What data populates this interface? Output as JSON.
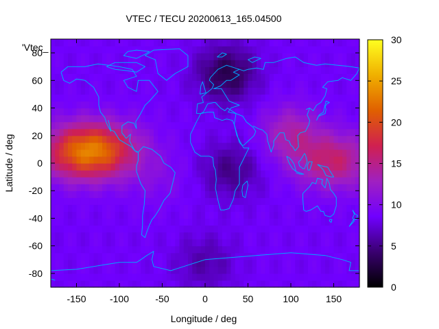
{
  "chart_data": {
    "type": "heatmap",
    "title": "VTEC / TECU 20200613_165.04500",
    "xlabel": "Longitude / deg",
    "ylabel": "Latitude / deg",
    "xlim": [
      -180,
      180
    ],
    "ylim": [
      -90,
      90
    ],
    "xticks": [
      -150,
      -100,
      -50,
      0,
      50,
      100,
      150
    ],
    "yticks": [
      -80,
      -60,
      -40,
      -20,
      0,
      20,
      40,
      60,
      80
    ],
    "colorbar": {
      "min": 0,
      "max": 30,
      "ticks": [
        0,
        5,
        10,
        15,
        20,
        25,
        30
      ],
      "palette": [
        "#000000",
        "#3a0070",
        "#7000ff",
        "#a020c0",
        "#d02050",
        "#e06000",
        "#f0b000",
        "#ffff20"
      ]
    },
    "key_label": "'Vtec_",
    "grid": false,
    "coastline_color": "#00a8ff",
    "field_model": {
      "base_tecu": 8.5,
      "features": [
        {
          "lon": -150,
          "lat": 8,
          "peak_tecu": 9.5
        },
        {
          "lon": -115,
          "lat": 10,
          "peak_tecu": 8.0
        },
        {
          "lon": 150,
          "lat": 2,
          "peak_tecu": 7.5
        },
        {
          "lon": 100,
          "lat": 22,
          "peak_tecu": 5.0
        },
        {
          "lon": -55,
          "lat": -10,
          "peak_tecu": 1.5
        },
        {
          "lon": 25,
          "lat": 65,
          "peak_tecu": -5.5
        },
        {
          "lon": 30,
          "lat": -5,
          "peak_tecu": -3.5
        },
        {
          "lon": 0,
          "lat": -72,
          "peak_tecu": -2.5
        }
      ]
    }
  }
}
